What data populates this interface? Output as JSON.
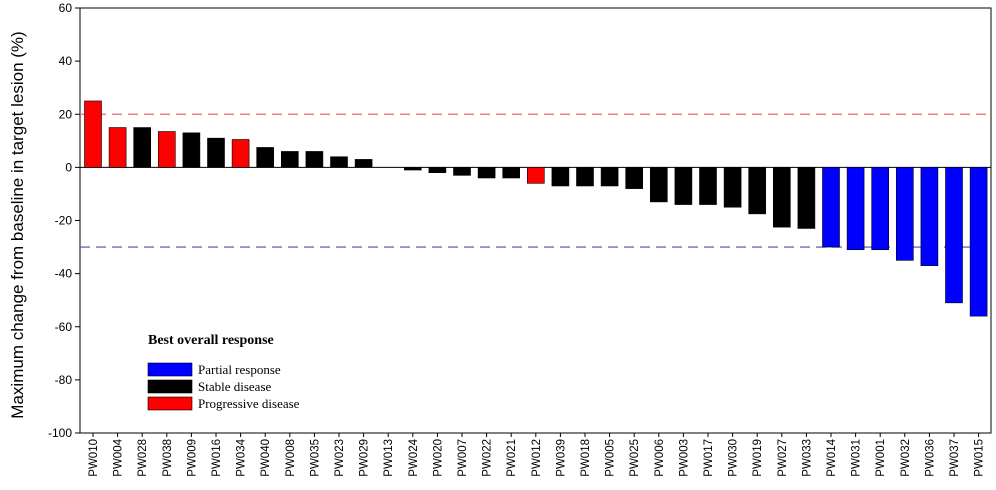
{
  "chart_data": {
    "type": "bar",
    "title": "",
    "xlabel": "",
    "ylabel": "Maximum change from baseline in target lesion (%)",
    "ylim": [
      -100,
      60
    ],
    "yticks": [
      60,
      40,
      20,
      0,
      -20,
      -40,
      -60,
      -80,
      -100
    ],
    "reference_lines": [
      {
        "value": 20,
        "color": "#e86a6a",
        "style": "dashed"
      },
      {
        "value": -30,
        "color": "#4a4ab0",
        "style": "dashed"
      }
    ],
    "categories": [
      "PW010",
      "PW004",
      "PW028",
      "PW038",
      "PW009",
      "PW016",
      "PW034",
      "PW040",
      "PW008",
      "PW035",
      "PW023",
      "PW029",
      "PW013",
      "PW024",
      "PW020",
      "PW007",
      "PW022",
      "PW021",
      "PW012",
      "PW039",
      "PW018",
      "PW005",
      "PW025",
      "PW006",
      "PW003",
      "PW017",
      "PW030",
      "PW019",
      "PW027",
      "PW033",
      "PW014",
      "PW031",
      "PW001",
      "PW032",
      "PW036",
      "PW037",
      "PW015"
    ],
    "values": [
      25,
      15,
      15,
      13.5,
      13,
      11,
      10.5,
      7.5,
      6,
      6,
      4,
      3,
      0,
      -1,
      -2,
      -3,
      -4,
      -4,
      -6,
      -7,
      -7,
      -7,
      -8,
      -13,
      -14,
      -14,
      -15,
      -17.5,
      -22.5,
      -23,
      -30,
      -31,
      -31,
      -35,
      -37,
      -51,
      -56
    ],
    "groups": [
      "Progressive disease",
      "Progressive disease",
      "Stable disease",
      "Progressive disease",
      "Stable disease",
      "Stable disease",
      "Progressive disease",
      "Stable disease",
      "Stable disease",
      "Stable disease",
      "Stable disease",
      "Stable disease",
      "Stable disease",
      "Stable disease",
      "Stable disease",
      "Stable disease",
      "Stable disease",
      "Stable disease",
      "Progressive disease",
      "Stable disease",
      "Stable disease",
      "Stable disease",
      "Stable disease",
      "Stable disease",
      "Stable disease",
      "Stable disease",
      "Stable disease",
      "Stable disease",
      "Stable disease",
      "Stable disease",
      "Partial response",
      "Partial response",
      "Partial response",
      "Partial response",
      "Partial response",
      "Partial response",
      "Partial response"
    ],
    "legend": {
      "title": "Best overall response",
      "placement": "bottom-left",
      "entries": [
        {
          "name": "Partial response",
          "color": "#0000ff"
        },
        {
          "name": "Stable disease",
          "color": "#000000"
        },
        {
          "name": "Progressive disease",
          "color": "#ff0000"
        }
      ]
    },
    "grid": false
  }
}
